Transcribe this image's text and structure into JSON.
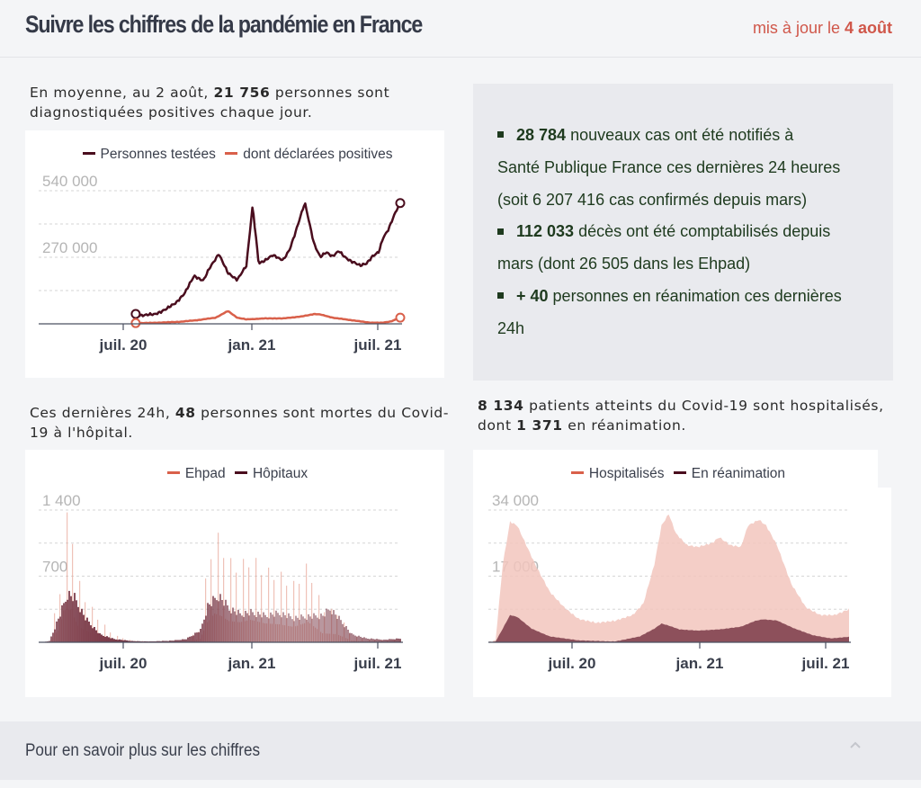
{
  "header": {
    "title": "Suivre les chiffres de la pandémie en France",
    "updated_prefix": "mis à jour le ",
    "updated_date": "4 août"
  },
  "block_tests": {
    "lead_a": "En moyenne, au 2 août, ",
    "lead_num": "21 756",
    "lead_b": " personnes sont diagnostiquées positives chaque jour."
  },
  "block_deaths": {
    "lead_a": "Ces dernières 24h, ",
    "lead_num": "48",
    "lead_b": " personnes sont mortes du Covid-19 à l'hôpital."
  },
  "block_hosp": {
    "lead_num1": "8 134",
    "lead_a": " patients atteints du Covid-19 sont hospitalisés, dont ",
    "lead_num2": "1 371",
    "lead_b": " en réanimation."
  },
  "info": {
    "items": [
      {
        "num": "28 784",
        "line1": " nouveaux cas ont été notifiés à",
        "line2": "Santé Publique France ces dernières 24 heures",
        "line3": "(soit 6 207 416 cas confirmés depuis mars)"
      },
      {
        "num": "112 033",
        "line1": " décès ont été comptabilisés depuis",
        "line2": "mars (dont 26 505 dans les Ehpad)"
      },
      {
        "num": "+ 40",
        "line1": " personnes en réanimation ces dernières",
        "line2": "24h"
      }
    ],
    "bullet_icon": "square-bullet-icon"
  },
  "footer": {
    "label": "Pour en savoir plus sur les chiffres",
    "chevron_icon": "chevron-up-icon",
    "chevron_glyph": "^"
  },
  "colors": {
    "dark": "#4a0d1e",
    "orange": "#d9604a",
    "accent_red": "#d0574a",
    "grid": "#d6d6d6",
    "tick_text": "#3a3f4c",
    "ylabel": "#b5b5b5"
  },
  "chart_data": [
    {
      "id": "tests",
      "type": "line",
      "title": "",
      "legend": [
        "Personnes testées",
        "dont déclarées positives"
      ],
      "legend_position": "top-center",
      "xlabel": "",
      "ylabel": "",
      "x_ticks": [
        {
          "label": "juil. 20",
          "t": 0.235
        },
        {
          "label": "jan. 21",
          "t": 0.59
        },
        {
          "label": "juil. 21",
          "t": 0.94
        }
      ],
      "y_tick_labels": [
        {
          "label": "540 000",
          "value": 540000
        },
        {
          "label": "270 000",
          "value": 270000
        }
      ],
      "y_gridlines": [
        135000,
        270000,
        405000,
        540000
      ],
      "ylim": [
        0,
        540000
      ],
      "grid": true,
      "series": [
        {
          "name": "Personnes testées",
          "color": "#4a0d1e",
          "t": [
            0.14,
            0.16,
            0.2,
            0.24,
            0.27,
            0.3,
            0.33,
            0.36,
            0.38,
            0.41,
            0.44,
            0.47,
            0.5,
            0.52,
            0.54,
            0.56,
            0.585,
            0.595,
            0.61,
            0.62,
            0.64,
            0.66,
            0.69,
            0.72,
            0.74,
            0.76,
            0.78,
            0.8,
            0.82,
            0.84,
            0.85,
            0.87,
            0.89,
            0.91,
            0.93,
            0.945,
            0.96,
            0.98,
            1.0
          ],
          "values": [
            40000,
            35000,
            38000,
            60000,
            85000,
            125000,
            195000,
            175000,
            225000,
            285000,
            205000,
            180000,
            235000,
            480000,
            245000,
            255000,
            280000,
            275000,
            262000,
            258000,
            300000,
            375000,
            490000,
            325000,
            270000,
            290000,
            275000,
            295000,
            270000,
            255000,
            250000,
            235000,
            245000,
            275000,
            290000,
            350000,
            380000,
            440000,
            490000
          ]
        },
        {
          "name": "dont déclarées positives",
          "color": "#d9604a",
          "t": [
            0.14,
            0.2,
            0.28,
            0.34,
            0.4,
            0.44,
            0.47,
            0.5,
            0.56,
            0.62,
            0.68,
            0.72,
            0.74,
            0.78,
            0.84,
            0.9,
            0.94,
            0.97,
            1.0
          ],
          "values": [
            3000,
            4000,
            8000,
            15000,
            25000,
            52000,
            25000,
            18000,
            22000,
            22000,
            30000,
            40000,
            38000,
            25000,
            15000,
            5000,
            4000,
            10000,
            25000
          ]
        }
      ]
    },
    {
      "id": "deaths",
      "type": "bar",
      "title": "",
      "legend": [
        "Ehpad",
        "Hôpitaux"
      ],
      "legend_position": "top-center",
      "x_ticks": [
        {
          "label": "juil. 20",
          "t": 0.235
        },
        {
          "label": "jan. 21",
          "t": 0.59
        },
        {
          "label": "juil. 21",
          "t": 0.94
        }
      ],
      "y_tick_labels": [
        {
          "label": "1 400",
          "value": 1400
        },
        {
          "label": "700",
          "value": 700
        }
      ],
      "y_gridlines": [
        350,
        700,
        1050,
        1400
      ],
      "ylim": [
        0,
        1400
      ],
      "grid": true,
      "series": [
        {
          "name": "Hôpitaux",
          "color": "#7a3a48",
          "envelope_t": [
            0.0,
            0.02,
            0.05,
            0.07,
            0.09,
            0.12,
            0.16,
            0.2,
            0.25,
            0.3,
            0.36,
            0.4,
            0.44,
            0.46,
            0.49,
            0.52,
            0.55,
            0.58,
            0.62,
            0.66,
            0.7,
            0.74,
            0.78,
            0.8,
            0.83,
            0.86,
            0.9,
            0.95,
            1.0
          ],
          "envelope_values": [
            0,
            15,
            350,
            600,
            550,
            300,
            100,
            40,
            15,
            10,
            20,
            40,
            150,
            450,
            580,
            420,
            350,
            370,
            330,
            360,
            300,
            320,
            330,
            420,
            270,
            100,
            50,
            30,
            50
          ]
        },
        {
          "name": "Ehpad",
          "color": "#e8a89a",
          "envelope_t": [
            0.0,
            0.02,
            0.05,
            0.06,
            0.08,
            0.1,
            0.12,
            0.16,
            0.2,
            0.25,
            0.3,
            0.4,
            0.44,
            0.46,
            0.48,
            0.5,
            0.52,
            0.55,
            0.58,
            0.62,
            0.66,
            0.7,
            0.74,
            0.78,
            0.82,
            0.86,
            0.9,
            1.0
          ],
          "envelope_values": [
            0,
            15,
            600,
            1350,
            1400,
            700,
            500,
            250,
            80,
            20,
            10,
            10,
            150,
            850,
            1220,
            1100,
            900,
            850,
            950,
            800,
            760,
            650,
            860,
            380,
            340,
            80,
            30,
            20
          ]
        }
      ]
    },
    {
      "id": "hospital",
      "type": "area",
      "title": "",
      "legend": [
        "Hospitalisés",
        "En réanimation"
      ],
      "legend_position": "top-center",
      "x_ticks": [
        {
          "label": "juil. 20",
          "t": 0.235
        },
        {
          "label": "jan. 21",
          "t": 0.59
        },
        {
          "label": "juil. 21",
          "t": 0.94
        }
      ],
      "y_tick_labels": [
        {
          "label": "34 000",
          "value": 34000
        },
        {
          "label": "17 000",
          "value": 17000
        }
      ],
      "y_gridlines": [
        8500,
        17000,
        25500,
        34000
      ],
      "ylim": [
        0,
        34000
      ],
      "grid": true,
      "series": [
        {
          "name": "Hospitalisés",
          "color": "#f2c6bd",
          "t": [
            0.0,
            0.02,
            0.04,
            0.06,
            0.08,
            0.1,
            0.13,
            0.17,
            0.21,
            0.25,
            0.3,
            0.35,
            0.4,
            0.43,
            0.46,
            0.48,
            0.5,
            0.52,
            0.55,
            0.58,
            0.62,
            0.64,
            0.67,
            0.7,
            0.72,
            0.75,
            0.77,
            0.8,
            0.84,
            0.88,
            0.92,
            0.96,
            1.0
          ],
          "values": [
            0,
            500,
            20000,
            31000,
            30000,
            26000,
            20000,
            13000,
            9000,
            6000,
            5000,
            5500,
            7000,
            10000,
            20000,
            30000,
            33000,
            28000,
            25000,
            24500,
            25500,
            27000,
            25000,
            24500,
            30000,
            31500,
            30000,
            25000,
            15000,
            9000,
            7000,
            7000,
            8500
          ]
        },
        {
          "name": "En réanimation",
          "color": "#7a3a48",
          "t": [
            0.0,
            0.02,
            0.04,
            0.06,
            0.08,
            0.12,
            0.17,
            0.25,
            0.35,
            0.42,
            0.46,
            0.48,
            0.5,
            0.53,
            0.58,
            0.64,
            0.7,
            0.74,
            0.76,
            0.8,
            0.85,
            0.9,
            0.95,
            1.0
          ],
          "values": [
            0,
            200,
            3500,
            7000,
            6500,
            3500,
            1500,
            500,
            200,
            1500,
            3500,
            4800,
            4300,
            3300,
            3000,
            3300,
            4000,
            5500,
            5900,
            5600,
            3500,
            1800,
            1000,
            1400
          ]
        }
      ]
    }
  ]
}
